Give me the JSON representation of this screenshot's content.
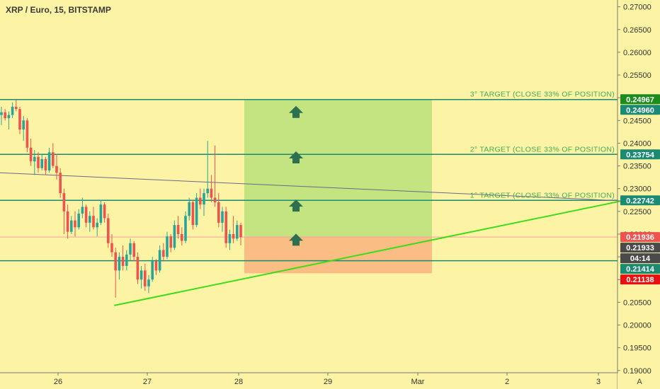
{
  "header": {
    "title": "XRP / Euro, 15, BITSTAMP"
  },
  "axis": {
    "auto_label": "A"
  },
  "chart_data": {
    "type": "candlestick",
    "title": "XRP / Euro, 15, BITSTAMP",
    "x_ticks": [
      "26",
      "27",
      "28",
      "29",
      "Mar",
      "2",
      "3"
    ],
    "y_ticks": [
      0.19,
      0.195,
      0.2,
      0.205,
      0.21,
      0.215,
      0.22,
      0.225,
      0.23,
      0.235,
      0.24,
      0.245,
      0.25,
      0.255,
      0.26,
      0.265,
      0.27
    ],
    "y_tick_labels": [
      "0.19000",
      "0.19500",
      "0.20000",
      "0.20500",
      "0.21000",
      "0.21500",
      "0.22000",
      "0.22500",
      "0.23000",
      "0.23500",
      "0.24000",
      "0.24500",
      "0.25000",
      "0.25500",
      "0.26000",
      "0.26500",
      "0.27000"
    ],
    "ylim": [
      0.1895,
      0.2715
    ],
    "price_tags": [
      {
        "label": "0.24960",
        "value": 0.2496,
        "color": "#1b8a73"
      },
      {
        "label": "0.24967",
        "value": 0.24967,
        "color": "#1c8c1c"
      },
      {
        "label": "0.23754",
        "value": 0.23754,
        "color": "#1b8a73"
      },
      {
        "label": "0.22742",
        "value": 0.22742,
        "color": "#1b8a73"
      },
      {
        "label": "0.21936",
        "value": 0.21936,
        "color": "#ef5350"
      },
      {
        "label": "04:14",
        "value": 0.2173,
        "color": "#4a4a4a"
      },
      {
        "label": "0.21933",
        "value": 0.21933,
        "color": "#4a4a4a"
      },
      {
        "label": "0.21414",
        "value": 0.21414,
        "color": "#1b8a73"
      },
      {
        "label": "0.21138",
        "value": 0.21138,
        "color": "#e81010"
      }
    ],
    "horizontal_lines": [
      {
        "value": 0.2496,
        "label": "3° TARGET (CLOSE 33% OF POSITION)"
      },
      {
        "value": 0.23754,
        "label": "2° TARGET (CLOSE 33% OF POSITION)"
      },
      {
        "value": 0.22742,
        "label": "1° TARGET (CLOSE 33% OF POSITION)"
      },
      {
        "value": 0.21414,
        "label": ""
      }
    ],
    "current_price_line": 0.21936,
    "position": {
      "entry": 0.21936,
      "target": 0.2496,
      "stop": 0.21138
    },
    "trendlines": [
      {
        "from": [
          0.0,
          0.2335
        ],
        "to": [
          0.93,
          0.2273
        ],
        "color": "#6a6a8a"
      },
      {
        "from": [
          0.185,
          0.2043
        ],
        "to": [
          0.93,
          0.2274
        ],
        "color": "#3ddc1a"
      }
    ],
    "candles": [
      [
        0.2462,
        0.248,
        0.244,
        0.2468
      ],
      [
        0.2468,
        0.2475,
        0.245,
        0.2455
      ],
      [
        0.2455,
        0.247,
        0.243,
        0.2462
      ],
      [
        0.2462,
        0.249,
        0.2455,
        0.248
      ],
      [
        0.248,
        0.2495,
        0.247,
        0.2475
      ],
      [
        0.2475,
        0.248,
        0.242,
        0.243
      ],
      [
        0.243,
        0.246,
        0.2405,
        0.245
      ],
      [
        0.245,
        0.2455,
        0.238,
        0.239
      ],
      [
        0.239,
        0.241,
        0.235,
        0.236
      ],
      [
        0.236,
        0.2385,
        0.233,
        0.237
      ],
      [
        0.237,
        0.238,
        0.2335,
        0.2345
      ],
      [
        0.2345,
        0.2375,
        0.234,
        0.2365
      ],
      [
        0.2365,
        0.237,
        0.233,
        0.234
      ],
      [
        0.234,
        0.239,
        0.2335,
        0.238
      ],
      [
        0.238,
        0.24,
        0.2345,
        0.235
      ],
      [
        0.235,
        0.2375,
        0.232,
        0.2335
      ],
      [
        0.2335,
        0.2345,
        0.228,
        0.229
      ],
      [
        0.229,
        0.23,
        0.22,
        0.225
      ],
      [
        0.225,
        0.2265,
        0.219,
        0.2205
      ],
      [
        0.2205,
        0.224,
        0.22,
        0.223
      ],
      [
        0.223,
        0.225,
        0.2195,
        0.2215
      ],
      [
        0.2215,
        0.2255,
        0.221,
        0.2245
      ],
      [
        0.2245,
        0.228,
        0.2235,
        0.226
      ],
      [
        0.226,
        0.2265,
        0.2215,
        0.2225
      ],
      [
        0.2225,
        0.225,
        0.2205,
        0.224
      ],
      [
        0.224,
        0.226,
        0.221,
        0.2215
      ],
      [
        0.2215,
        0.2235,
        0.2195,
        0.2225
      ],
      [
        0.2225,
        0.2275,
        0.222,
        0.2265
      ],
      [
        0.2265,
        0.227,
        0.2225,
        0.2235
      ],
      [
        0.2235,
        0.2245,
        0.217,
        0.218
      ],
      [
        0.218,
        0.22,
        0.215,
        0.216
      ],
      [
        0.216,
        0.217,
        0.206,
        0.212
      ],
      [
        0.212,
        0.216,
        0.21,
        0.215
      ],
      [
        0.215,
        0.2175,
        0.212,
        0.213
      ],
      [
        0.213,
        0.2165,
        0.212,
        0.2155
      ],
      [
        0.2155,
        0.219,
        0.214,
        0.218
      ],
      [
        0.218,
        0.2185,
        0.214,
        0.215
      ],
      [
        0.215,
        0.216,
        0.209,
        0.21
      ],
      [
        0.21,
        0.213,
        0.208,
        0.212
      ],
      [
        0.212,
        0.2135,
        0.2075,
        0.2085
      ],
      [
        0.2085,
        0.211,
        0.207,
        0.21
      ],
      [
        0.21,
        0.215,
        0.2095,
        0.214
      ],
      [
        0.214,
        0.2145,
        0.211,
        0.212
      ],
      [
        0.212,
        0.2175,
        0.2115,
        0.2165
      ],
      [
        0.2165,
        0.218,
        0.214,
        0.215
      ],
      [
        0.215,
        0.2205,
        0.2145,
        0.2195
      ],
      [
        0.2195,
        0.22,
        0.216,
        0.217
      ],
      [
        0.217,
        0.223,
        0.2165,
        0.222
      ],
      [
        0.222,
        0.224,
        0.219,
        0.22
      ],
      [
        0.22,
        0.2215,
        0.2175,
        0.2185
      ],
      [
        0.2185,
        0.225,
        0.218,
        0.224
      ],
      [
        0.224,
        0.228,
        0.223,
        0.227
      ],
      [
        0.227,
        0.2275,
        0.221,
        0.222
      ],
      [
        0.222,
        0.229,
        0.2215,
        0.228
      ],
      [
        0.228,
        0.23,
        0.2255,
        0.2265
      ],
      [
        0.2265,
        0.23,
        0.224,
        0.229
      ],
      [
        0.229,
        0.2405,
        0.228,
        0.23
      ],
      [
        0.23,
        0.233,
        0.227,
        0.228
      ],
      [
        0.228,
        0.2395,
        0.226,
        0.227
      ],
      [
        0.227,
        0.229,
        0.2215,
        0.2225
      ],
      [
        0.2225,
        0.226,
        0.2205,
        0.225
      ],
      [
        0.225,
        0.226,
        0.217,
        0.218
      ],
      [
        0.218,
        0.221,
        0.2165,
        0.22
      ],
      [
        0.22,
        0.224,
        0.218,
        0.219
      ],
      [
        0.219,
        0.223,
        0.2185,
        0.222
      ],
      [
        0.222,
        0.2225,
        0.2175,
        0.2193
      ]
    ]
  }
}
